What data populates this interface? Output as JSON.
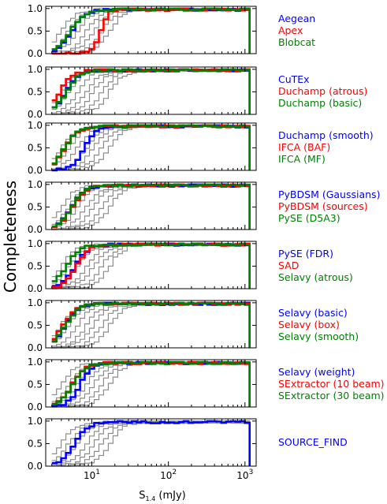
{
  "chart_data": {
    "type": "line",
    "ylabel": "Completeness",
    "xlabel": "S",
    "xlabel_sub": "1.4",
    "xlabel_unit": " (mJy)",
    "xscale": "log",
    "xlim": [
      2.5,
      1400
    ],
    "ylim": [
      0.0,
      1.05
    ],
    "xticks": [
      {
        "v": 10,
        "base": "10",
        "exp": "1"
      },
      {
        "v": 100,
        "base": "10",
        "exp": "2"
      },
      {
        "v": 1000,
        "base": "10",
        "exp": "3"
      }
    ],
    "yticks": [
      "0.0",
      "0.5",
      "1.0"
    ],
    "colors": {
      "blue": "#0000ff",
      "red": "#ff0000",
      "green": "#008000",
      "gray": "#8c8c8c"
    },
    "background_gray_curves": 7,
    "panels": [
      {
        "series": [
          {
            "name": "Aegean",
            "color": "blue",
            "thr": 5.5,
            "sharp": 2.2
          },
          {
            "name": "Apex",
            "color": "red",
            "thr": 13.0,
            "sharp": 4.0
          },
          {
            "name": "Blobcat",
            "color": "green",
            "thr": 5.2,
            "sharp": 2.0
          }
        ]
      },
      {
        "series": [
          {
            "name": "CuTEx",
            "color": "blue",
            "thr": 4.6,
            "sharp": 2.2
          },
          {
            "name": "Duchamp (atrous)",
            "color": "red",
            "thr": 3.8,
            "sharp": 2.2
          },
          {
            "name": "Duchamp (basic)",
            "color": "green",
            "thr": 4.6,
            "sharp": 2.2
          }
        ]
      },
      {
        "series": [
          {
            "name": "Duchamp (smooth)",
            "color": "blue",
            "thr": 8.0,
            "sharp": 2.5
          },
          {
            "name": "IFCA (BAF)",
            "color": "red",
            "thr": 4.5,
            "sharp": 2.2
          },
          {
            "name": "IFCA (MF)",
            "color": "green",
            "thr": 4.4,
            "sharp": 2.2
          }
        ]
      },
      {
        "series": [
          {
            "name": "PyBDSM (Gaussians)",
            "color": "blue",
            "thr": 5.5,
            "sharp": 2.2
          },
          {
            "name": "PyBDSM (sources)",
            "color": "red",
            "thr": 5.6,
            "sharp": 2.2
          },
          {
            "name": "PySE (D5A3)",
            "color": "green",
            "thr": 5.4,
            "sharp": 2.2
          }
        ]
      },
      {
        "series": [
          {
            "name": "PySE (FDR)",
            "color": "blue",
            "thr": 6.0,
            "sharp": 2.2
          },
          {
            "name": "SAD",
            "color": "red",
            "thr": 6.3,
            "sharp": 2.5
          },
          {
            "name": "Selavy (atrous)",
            "color": "green",
            "thr": 4.6,
            "sharp": 2.2
          }
        ]
      },
      {
        "series": [
          {
            "name": "Selavy (basic)",
            "color": "blue",
            "thr": 4.5,
            "sharp": 2.2
          },
          {
            "name": "Selavy (box)",
            "color": "red",
            "thr": 4.2,
            "sharp": 2.2
          },
          {
            "name": "Selavy (smooth)",
            "color": "green",
            "thr": 4.5,
            "sharp": 2.2
          }
        ]
      },
      {
        "series": [
          {
            "name": "Selavy (weight)",
            "color": "blue",
            "thr": 7.0,
            "sharp": 2.5
          },
          {
            "name": "SExtractor (10 beam)",
            "color": "red",
            "thr": 5.5,
            "sharp": 2.2
          },
          {
            "name": "SExtractor (30 beam)",
            "color": "green",
            "thr": 5.6,
            "sharp": 2.2
          }
        ]
      },
      {
        "series": [
          {
            "name": "SOURCE_FIND",
            "color": "blue",
            "thr": 6.0,
            "sharp": 2.2
          }
        ]
      }
    ]
  }
}
